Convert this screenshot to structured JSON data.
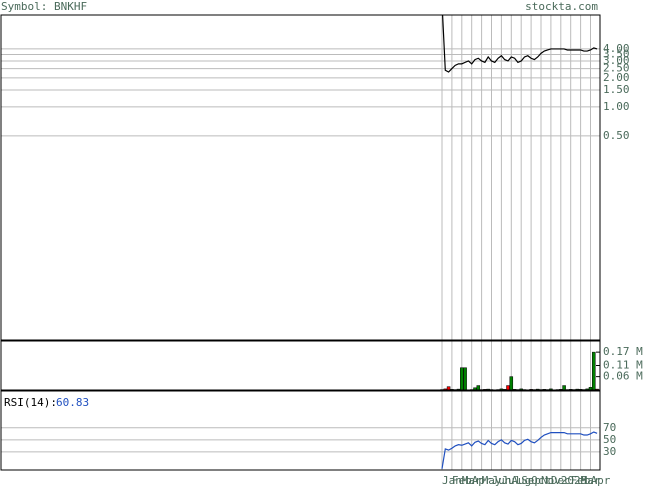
{
  "header": {
    "symbol": "Symbol: BNKHF",
    "site": "stockta.com"
  },
  "chart_data": [
    {
      "type": "line",
      "log_scale": true,
      "color": "#000000",
      "series": [
        {
          "name": "Price",
          "color": "#000000",
          "values": [
            12,
            2.4,
            2.3,
            2.5,
            2.7,
            2.8,
            2.8,
            2.9,
            3.0,
            2.8,
            3.1,
            3.2,
            3.0,
            2.9,
            3.3,
            3.0,
            2.9,
            3.2,
            3.4,
            3.1,
            3.0,
            3.3,
            3.2,
            2.9,
            3.0,
            3.3,
            3.4,
            3.2,
            3.1,
            3.3,
            3.6,
            3.8,
            3.9,
            4.0,
            4.0,
            4.0,
            4.0,
            4.0,
            3.9,
            3.9,
            3.9,
            3.9,
            3.9,
            3.8,
            3.8,
            3.9,
            4.1,
            4.0
          ]
        }
      ],
      "ylim": [
        0.0038,
        9
      ],
      "yticks": [
        {
          "value": 4,
          "label": "4.00"
        },
        {
          "value": 3.5,
          "label": "3.50"
        },
        {
          "value": 3,
          "label": "3.00"
        },
        {
          "value": 2.5,
          "label": "2.50"
        },
        {
          "value": 2,
          "label": "2.00"
        },
        {
          "value": 1.5,
          "label": "1.50"
        },
        {
          "value": 1,
          "label": "1.00"
        },
        {
          "value": 0.5,
          "label": "0.50"
        }
      ],
      "grid": true
    },
    {
      "type": "bar",
      "up_color": "#008000",
      "down_color": "#ff0000",
      "series": [
        {
          "name": "Volume",
          "values": [
            0.002,
            0.005,
            0.015,
            0.003,
            0.002,
            0.004,
            0.1,
            0.1,
            0.001,
            0.002,
            0.01,
            0.02,
            0.002,
            0.003,
            0.004,
            0.002,
            0.001,
            0.002,
            0.005,
            0.003,
            0.02,
            0.06,
            0.003,
            0.002,
            0.005,
            0.002,
            0.001,
            0.003,
            0.002,
            0.004,
            0.002,
            0.003,
            0.002,
            0.005,
            0.001,
            0.002,
            0.003,
            0.02,
            0.002,
            0.003,
            0.002,
            0.004,
            0.003,
            0.002,
            0.005,
            0.012,
            0.17,
            0.004
          ]
        }
      ],
      "ylim": [
        0,
        0.22
      ],
      "yticks": [
        {
          "value": 0.17,
          "label": "0.17 M"
        },
        {
          "value": 0.11,
          "label": "0.11 M"
        },
        {
          "value": 0.06,
          "label": "0.06 M"
        }
      ],
      "grid": false
    },
    {
      "type": "line",
      "label": "RSI(14):",
      "color": "#2050c0",
      "series": [
        {
          "name": "RSI",
          "color": "#2050c0",
          "values": [
            2,
            35,
            33,
            36,
            40,
            42,
            41,
            43,
            45,
            40,
            46,
            48,
            44,
            42,
            49,
            44,
            42,
            47,
            50,
            45,
            43,
            49,
            47,
            42,
            44,
            49,
            51,
            47,
            45,
            49,
            54,
            58,
            60,
            62,
            62,
            62,
            62,
            62,
            60,
            60,
            60,
            60,
            60,
            58,
            58,
            60,
            63,
            60.83
          ]
        }
      ],
      "ylim": [
        0,
        131
      ],
      "yticks": [
        70,
        50,
        30
      ],
      "grid": true,
      "categories": [
        "Jan",
        null,
        null,
        "Feb",
        null,
        null,
        "Mar",
        null,
        null,
        "Apr",
        null,
        null,
        "May",
        null,
        null,
        "Jun",
        null,
        null,
        "Jul",
        null,
        null,
        "Aug",
        null,
        null,
        "Sep",
        null,
        null,
        "Oct",
        null,
        null,
        "Nov",
        null,
        null,
        "Dec",
        null,
        null,
        "2025",
        null,
        null,
        "Feb",
        null,
        null,
        "Mar",
        null,
        null,
        "Apr",
        null,
        null
      ]
    }
  ]
}
